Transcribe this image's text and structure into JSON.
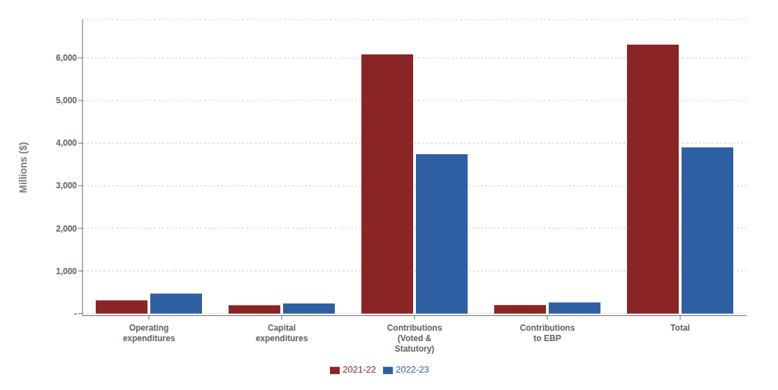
{
  "chart_data": {
    "type": "bar",
    "categories": [
      "Operating\nexpenditures",
      "Capital\nexpenditures",
      "Contributions\n(Voted &\nStatutory)",
      "Contributions\nto EBP",
      "Total"
    ],
    "series": [
      {
        "name": "2021-22",
        "color": "#8B2525",
        "values": [
          310,
          195,
          6080,
          200,
          6310
        ]
      },
      {
        "name": "2022-23",
        "color": "#2E5FA3",
        "values": [
          470,
          235,
          3740,
          260,
          3900
        ]
      }
    ],
    "ylabel": "Millions ($)",
    "ylim": [
      -50,
      6900
    ],
    "yticks": [
      {
        "value": 0,
        "label": "-"
      },
      {
        "value": 1000,
        "label": "1,000"
      },
      {
        "value": 2000,
        "label": "2,000"
      },
      {
        "value": 3000,
        "label": "3,000"
      },
      {
        "value": 4000,
        "label": "4,000"
      },
      {
        "value": 5000,
        "label": "5,000"
      },
      {
        "value": 6000,
        "label": "6,000"
      }
    ],
    "grid": true,
    "legend": "bottom"
  }
}
